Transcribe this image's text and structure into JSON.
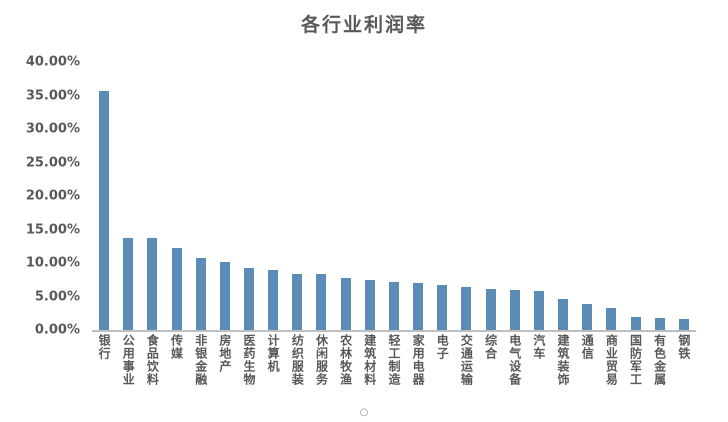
{
  "chart_data": {
    "type": "bar",
    "title": "各行业利润率",
    "categories": [
      "银行",
      "公用事业",
      "食品饮料",
      "传媒",
      "非银金融",
      "房地产",
      "医药生物",
      "计算机",
      "纺织服装",
      "休闲服务",
      "农林牧渔",
      "建筑材料",
      "轻工制造",
      "家用电器",
      "电子",
      "交通运输",
      "综合",
      "电气设备",
      "汽车",
      "建筑装饰",
      "通信",
      "商业贸易",
      "国防军工",
      "有色金属",
      "钢铁"
    ],
    "values": [
      35.6,
      13.8,
      13.7,
      12.3,
      10.7,
      10.1,
      9.2,
      9.0,
      8.4,
      8.3,
      7.8,
      7.4,
      7.1,
      7.0,
      6.7,
      6.4,
      6.1,
      5.9,
      5.8,
      4.6,
      3.9,
      3.3,
      1.9,
      1.8,
      1.6
    ],
    "xlabel": "",
    "ylabel": "",
    "ylim": [
      0,
      40
    ],
    "ytick_step": 5,
    "ytick_suffix": "%",
    "ytick_decimals": 2,
    "grid": false,
    "legend": false,
    "bar_color": "#5b8cb8",
    "axis_line_color": "#bfbfbf",
    "text_color": "#595959"
  },
  "icons": {
    "footer_dot": "○"
  }
}
